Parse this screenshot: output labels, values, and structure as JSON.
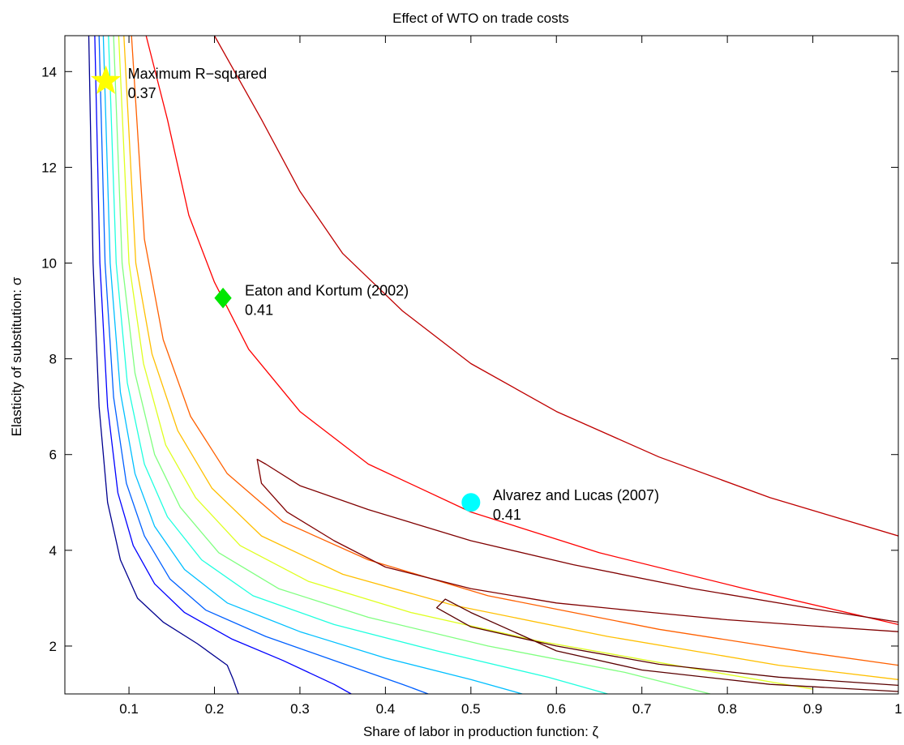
{
  "chart_data": {
    "type": "contour",
    "title": "Effect of WTO on trade costs",
    "xlabel": "Share of labor in production function: ζ",
    "ylabel": "Elasticity of substitution: σ",
    "xlim": [
      0.025,
      1.0
    ],
    "ylim": [
      1.0,
      14.75
    ],
    "xticks": [
      0.1,
      0.2,
      0.3,
      0.4,
      0.5,
      0.6,
      0.7,
      0.8,
      0.9,
      1
    ],
    "xtick_labels": [
      "0.1",
      "0.2",
      "0.3",
      "0.4",
      "0.5",
      "0.6",
      "0.7",
      "0.8",
      "0.9",
      "1"
    ],
    "yticks": [
      2,
      4,
      6,
      8,
      10,
      12,
      14
    ],
    "ytick_labels": [
      "2",
      "4",
      "6",
      "8",
      "10",
      "12",
      "14"
    ],
    "grid": false,
    "colormap": "jet",
    "contours": [
      {
        "color": "#00008F",
        "points": [
          [
            0.053,
            14.75
          ],
          [
            0.058,
            10
          ],
          [
            0.065,
            7
          ],
          [
            0.075,
            5
          ],
          [
            0.09,
            3.8
          ],
          [
            0.11,
            3
          ],
          [
            0.14,
            2.5
          ],
          [
            0.18,
            2.05
          ],
          [
            0.215,
            1.6
          ],
          [
            0.222,
            1.3
          ],
          [
            0.228,
            1.0
          ]
        ]
      },
      {
        "color": "#0000FF",
        "points": [
          [
            0.06,
            14.75
          ],
          [
            0.066,
            10
          ],
          [
            0.075,
            7
          ],
          [
            0.087,
            5.2
          ],
          [
            0.105,
            4.1
          ],
          [
            0.13,
            3.3
          ],
          [
            0.165,
            2.7
          ],
          [
            0.22,
            2.15
          ],
          [
            0.28,
            1.7
          ],
          [
            0.34,
            1.2
          ],
          [
            0.36,
            1.0
          ]
        ]
      },
      {
        "color": "#0060FF",
        "points": [
          [
            0.065,
            14.75
          ],
          [
            0.072,
            10
          ],
          [
            0.082,
            7.2
          ],
          [
            0.097,
            5.4
          ],
          [
            0.118,
            4.3
          ],
          [
            0.148,
            3.4
          ],
          [
            0.19,
            2.75
          ],
          [
            0.26,
            2.2
          ],
          [
            0.34,
            1.7
          ],
          [
            0.42,
            1.2
          ],
          [
            0.45,
            1.0
          ]
        ]
      },
      {
        "color": "#00BFFF",
        "points": [
          [
            0.07,
            14.75
          ],
          [
            0.078,
            10
          ],
          [
            0.09,
            7.3
          ],
          [
            0.107,
            5.6
          ],
          [
            0.13,
            4.5
          ],
          [
            0.165,
            3.6
          ],
          [
            0.215,
            2.9
          ],
          [
            0.3,
            2.3
          ],
          [
            0.4,
            1.75
          ],
          [
            0.5,
            1.3
          ],
          [
            0.56,
            1.0
          ]
        ]
      },
      {
        "color": "#20FFDF",
        "points": [
          [
            0.076,
            14.75
          ],
          [
            0.085,
            10
          ],
          [
            0.098,
            7.5
          ],
          [
            0.118,
            5.8
          ],
          [
            0.145,
            4.7
          ],
          [
            0.185,
            3.8
          ],
          [
            0.245,
            3.05
          ],
          [
            0.34,
            2.45
          ],
          [
            0.46,
            1.9
          ],
          [
            0.59,
            1.35
          ],
          [
            0.66,
            1.0
          ]
        ]
      },
      {
        "color": "#80FF80",
        "points": [
          [
            0.082,
            14.75
          ],
          [
            0.092,
            10
          ],
          [
            0.107,
            7.7
          ],
          [
            0.13,
            6.0
          ],
          [
            0.16,
            4.9
          ],
          [
            0.205,
            3.95
          ],
          [
            0.275,
            3.2
          ],
          [
            0.38,
            2.6
          ],
          [
            0.52,
            2.0
          ],
          [
            0.68,
            1.45
          ],
          [
            0.78,
            1.0
          ]
        ]
      },
      {
        "color": "#DFFF20",
        "points": [
          [
            0.088,
            14.75
          ],
          [
            0.1,
            10
          ],
          [
            0.117,
            7.9
          ],
          [
            0.143,
            6.2
          ],
          [
            0.178,
            5.1
          ],
          [
            0.23,
            4.1
          ],
          [
            0.31,
            3.35
          ],
          [
            0.43,
            2.7
          ],
          [
            0.58,
            2.1
          ],
          [
            0.77,
            1.5
          ],
          [
            0.9,
            1.1
          ]
        ]
      },
      {
        "color": "#FFBF00",
        "points": [
          [
            0.094,
            14.75
          ],
          [
            0.108,
            10
          ],
          [
            0.127,
            8.1
          ],
          [
            0.157,
            6.5
          ],
          [
            0.197,
            5.3
          ],
          [
            0.255,
            4.3
          ],
          [
            0.35,
            3.5
          ],
          [
            0.48,
            2.85
          ],
          [
            0.66,
            2.2
          ],
          [
            0.86,
            1.6
          ],
          [
            1.0,
            1.3
          ]
        ]
      },
      {
        "color": "#FF6000",
        "points": [
          [
            0.103,
            14.75
          ],
          [
            0.118,
            10.5
          ],
          [
            0.14,
            8.4
          ],
          [
            0.172,
            6.8
          ],
          [
            0.215,
            5.6
          ],
          [
            0.28,
            4.6
          ],
          [
            0.38,
            3.8
          ],
          [
            0.52,
            3.05
          ],
          [
            0.72,
            2.35
          ],
          [
            0.9,
            1.85
          ],
          [
            1.0,
            1.6
          ]
        ]
      },
      {
        "color": "#FF0000",
        "points": [
          [
            0.12,
            14.75
          ],
          [
            0.145,
            13
          ],
          [
            0.17,
            11
          ],
          [
            0.2,
            9.6
          ],
          [
            0.24,
            8.2
          ],
          [
            0.3,
            6.9
          ],
          [
            0.38,
            5.8
          ],
          [
            0.5,
            4.8
          ],
          [
            0.65,
            3.95
          ],
          [
            0.82,
            3.2
          ],
          [
            1.0,
            2.45
          ]
        ]
      },
      {
        "color": "#BF0000",
        "points": [
          [
            0.2,
            14.75
          ],
          [
            0.255,
            13
          ],
          [
            0.3,
            11.5
          ],
          [
            0.35,
            10.2
          ],
          [
            0.42,
            9
          ],
          [
            0.5,
            7.9
          ],
          [
            0.6,
            6.9
          ],
          [
            0.72,
            5.95
          ],
          [
            0.85,
            5.1
          ],
          [
            1.0,
            4.3
          ]
        ]
      },
      {
        "color": "#800000",
        "points": [
          [
            1.0,
            2.3
          ],
          [
            0.9,
            2.42
          ],
          [
            0.8,
            2.55
          ],
          [
            0.7,
            2.72
          ],
          [
            0.6,
            2.9
          ],
          [
            0.5,
            3.2
          ],
          [
            0.4,
            3.65
          ],
          [
            0.34,
            4.2
          ],
          [
            0.285,
            4.8
          ],
          [
            0.255,
            5.4
          ],
          [
            0.25,
            5.9
          ],
          [
            0.26,
            5.8
          ],
          [
            0.3,
            5.35
          ],
          [
            0.38,
            4.85
          ],
          [
            0.5,
            4.2
          ],
          [
            0.62,
            3.7
          ],
          [
            0.76,
            3.2
          ],
          [
            0.9,
            2.78
          ],
          [
            1.0,
            2.5
          ]
        ]
      },
      {
        "color": "#5A0000",
        "points": [
          [
            1.0,
            1.05
          ],
          [
            0.85,
            1.2
          ],
          [
            0.7,
            1.5
          ],
          [
            0.6,
            1.9
          ],
          [
            0.55,
            2.3
          ],
          [
            0.5,
            2.7
          ],
          [
            0.47,
            2.98
          ],
          [
            0.46,
            2.8
          ],
          [
            0.5,
            2.4
          ],
          [
            0.6,
            2.0
          ],
          [
            0.72,
            1.62
          ],
          [
            0.86,
            1.35
          ],
          [
            1.0,
            1.18
          ]
        ]
      }
    ],
    "annotations": [
      {
        "marker": "star",
        "color": "#FFFF00",
        "x": 0.073,
        "y": 13.8,
        "label": "Maximum R−squared",
        "value": "0.37"
      },
      {
        "marker": "diamond",
        "color": "#00E600",
        "x": 0.21,
        "y": 9.27,
        "label": "Eaton and Kortum (2002)",
        "value": "0.41"
      },
      {
        "marker": "circle",
        "color": "#00FFFF",
        "x": 0.5,
        "y": 5.0,
        "label": "Alvarez and Lucas (2007)",
        "value": "0.41"
      }
    ]
  }
}
